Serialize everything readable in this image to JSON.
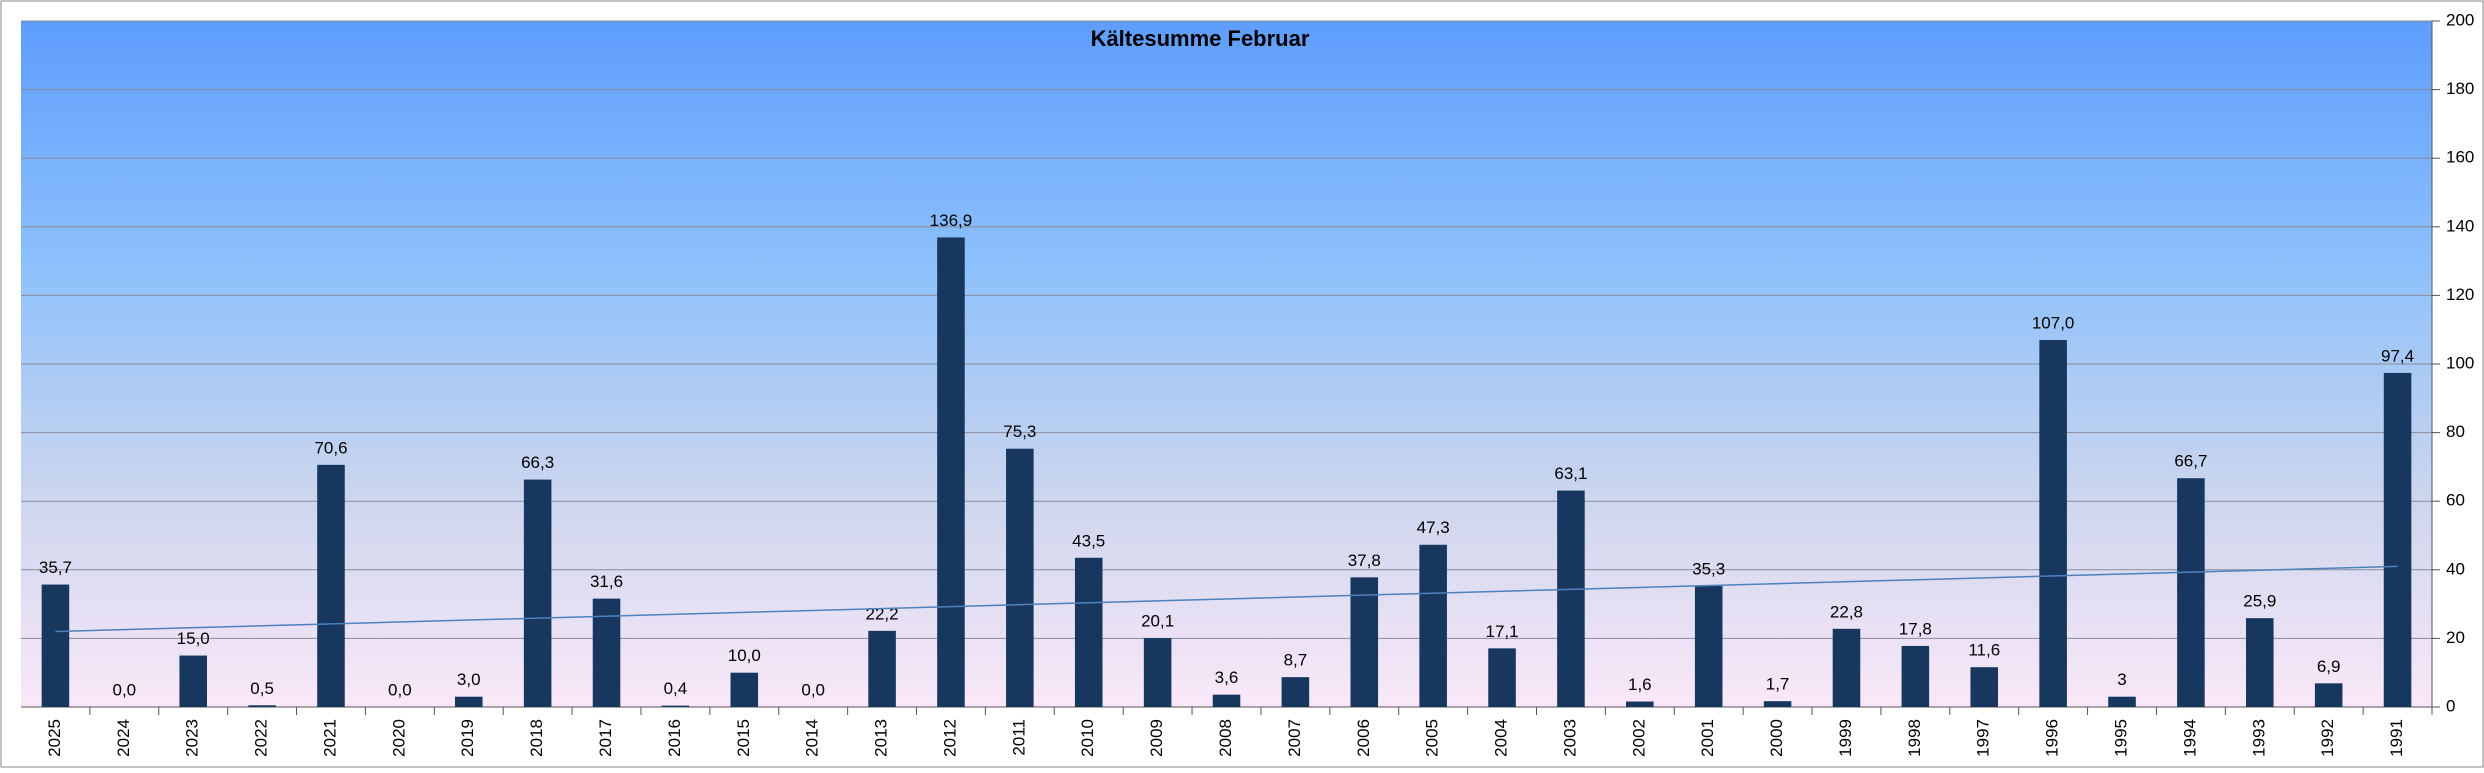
{
  "chart_data": {
    "type": "bar",
    "title": "Kältesumme Februar",
    "categories": [
      "2025",
      "2024",
      "2023",
      "2022",
      "2021",
      "2020",
      "2019",
      "2018",
      "2017",
      "2016",
      "2015",
      "2014",
      "2013",
      "2012",
      "2011",
      "2010",
      "2009",
      "2008",
      "2007",
      "2006",
      "2005",
      "2004",
      "2003",
      "2002",
      "2001",
      "2000",
      "1999",
      "1998",
      "1997",
      "1996",
      "1995",
      "1994",
      "1993",
      "1992",
      "1991"
    ],
    "values": [
      35.7,
      0.0,
      15.0,
      0.5,
      70.6,
      0.0,
      3.0,
      66.3,
      31.6,
      0.4,
      10.0,
      0.0,
      22.2,
      136.9,
      75.3,
      43.5,
      20.1,
      3.6,
      8.7,
      37.8,
      47.3,
      17.1,
      63.1,
      1.6,
      35.3,
      1.7,
      22.8,
      17.8,
      11.6,
      107.0,
      3,
      66.7,
      25.9,
      6.9,
      97.4
    ],
    "value_labels": [
      "35,7",
      "0,0",
      "15,0",
      "0,5",
      "70,6",
      "0,0",
      "3,0",
      "66,3",
      "31,6",
      "0,4",
      "10,0",
      "0,0",
      "22,2",
      "136,9",
      "75,3",
      "43,5",
      "20,1",
      "3,6",
      "8,7",
      "37,8",
      "47,3",
      "17,1",
      "63,1",
      "1,6",
      "35,3",
      "1,7",
      "22,8",
      "17,8",
      "11,6",
      "107,0",
      "3",
      "66,7",
      "25,9",
      "6,9",
      "97,4"
    ],
    "color": "#17375e",
    "trend": [
      22,
      41
    ],
    "trend_color": "#4f81bd",
    "ylim": [
      0,
      200
    ],
    "yticks": [
      0,
      20,
      40,
      60,
      80,
      100,
      120,
      140,
      160,
      180,
      200
    ],
    "grid": true
  }
}
